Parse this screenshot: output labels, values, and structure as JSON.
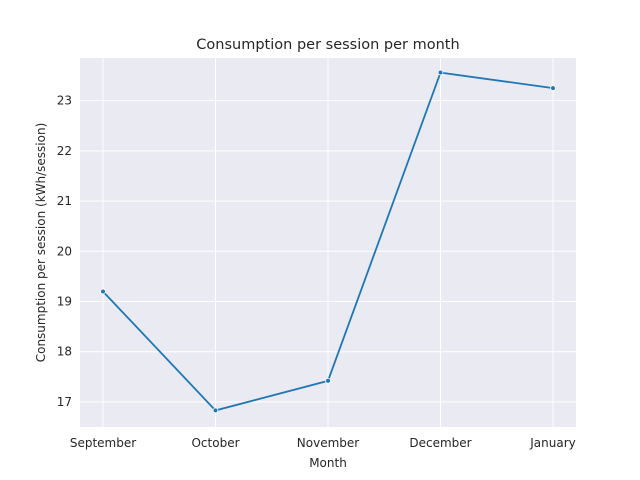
{
  "chart_data": {
    "type": "line",
    "title": "Consumption per session per month",
    "xlabel": "Month",
    "ylabel": "Consumption per session (kWh/session)",
    "categories": [
      "September",
      "October",
      "November",
      "December",
      "January"
    ],
    "series": [
      {
        "values": [
          19.2,
          16.83,
          17.42,
          23.56,
          23.25
        ]
      }
    ],
    "ylim": [
      16.5,
      23.85
    ],
    "yticks": [
      17,
      18,
      19,
      20,
      21,
      22,
      23
    ],
    "grid": true,
    "colors": {
      "line": "#1f77b4",
      "background": "#eaeaf2"
    }
  }
}
